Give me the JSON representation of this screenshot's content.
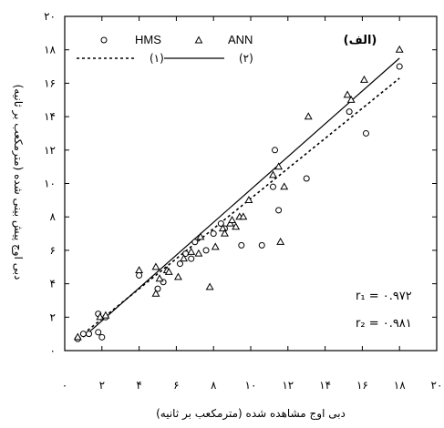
{
  "chart_data": {
    "type": "scatter",
    "panel_label": "(الف)",
    "xlabel": "دبی اوج مشاهده شده (مترمکعب بر ثانیه)",
    "ylabel": "دبی اوج پیش بینی شده (مترمکعب بر ثانیه)",
    "xlim": [
      0,
      20
    ],
    "ylim": [
      0,
      20
    ],
    "x_ticks": [
      0,
      2,
      4,
      6,
      8,
      10,
      12,
      14,
      16,
      18,
      20
    ],
    "x_tick_labels": [
      "۰",
      "۲",
      "۴",
      "۶",
      "۸",
      "۱۰",
      "۱۲",
      "۱۴",
      "۱۶",
      "۱۸",
      "۲۰"
    ],
    "y_ticks": [
      0,
      2,
      4,
      6,
      8,
      10,
      12,
      14,
      16,
      18,
      20
    ],
    "y_tick_labels": [
      "۰",
      "۲",
      "۴",
      "۶",
      "۸",
      "۱۰",
      "۱۲",
      "۱۴",
      "۱۶",
      "۱۸",
      "۲۰"
    ],
    "grid": false,
    "legend_position": "top-left",
    "series": [
      {
        "name": "HMS",
        "marker": "circle",
        "points": [
          [
            0.7,
            0.7
          ],
          [
            1.0,
            1.0
          ],
          [
            1.3,
            1.0
          ],
          [
            1.8,
            1.1
          ],
          [
            2.0,
            0.8
          ],
          [
            1.8,
            2.2
          ],
          [
            2.2,
            2.0
          ],
          [
            4.0,
            4.5
          ],
          [
            5.0,
            3.7
          ],
          [
            5.3,
            4.1
          ],
          [
            6.2,
            5.2
          ],
          [
            6.5,
            5.8
          ],
          [
            6.8,
            5.5
          ],
          [
            7.0,
            6.5
          ],
          [
            7.6,
            6.0
          ],
          [
            8.0,
            7.0
          ],
          [
            8.4,
            7.6
          ],
          [
            8.6,
            7.3
          ],
          [
            9.5,
            6.3
          ],
          [
            10.6,
            6.3
          ],
          [
            11.3,
            12.0
          ],
          [
            11.5,
            8.4
          ],
          [
            11.2,
            9.8
          ],
          [
            13.0,
            10.3
          ],
          [
            15.3,
            14.3
          ],
          [
            16.2,
            13.0
          ],
          [
            18.0,
            17.0
          ]
        ]
      },
      {
        "name": "ANN",
        "marker": "triangle",
        "points": [
          [
            0.7,
            0.8
          ],
          [
            1.9,
            2.0
          ],
          [
            2.2,
            2.1
          ],
          [
            4.0,
            4.8
          ],
          [
            4.9,
            3.4
          ],
          [
            4.9,
            5.0
          ],
          [
            5.1,
            4.3
          ],
          [
            5.5,
            4.8
          ],
          [
            5.6,
            4.7
          ],
          [
            6.1,
            4.4
          ],
          [
            6.4,
            5.5
          ],
          [
            6.8,
            5.9
          ],
          [
            7.2,
            5.8
          ],
          [
            7.3,
            6.8
          ],
          [
            7.8,
            3.8
          ],
          [
            8.1,
            6.2
          ],
          [
            8.5,
            7.3
          ],
          [
            8.6,
            7.0
          ],
          [
            8.9,
            7.6
          ],
          [
            9.0,
            7.8
          ],
          [
            9.2,
            7.4
          ],
          [
            9.4,
            8.0
          ],
          [
            9.6,
            8.0
          ],
          [
            9.9,
            9.0
          ],
          [
            11.2,
            10.5
          ],
          [
            11.5,
            11.0
          ],
          [
            11.6,
            6.5
          ],
          [
            11.8,
            9.8
          ],
          [
            13.1,
            14.0
          ],
          [
            15.2,
            15.3
          ],
          [
            15.4,
            15.0
          ],
          [
            16.1,
            16.2
          ],
          [
            18.0,
            18.0
          ]
        ]
      }
    ],
    "fit_lines": [
      {
        "name": "(۱)",
        "style": "dotted",
        "from": [
          1.0,
          1.0
        ],
        "to": [
          18.0,
          16.3
        ]
      },
      {
        "name": "(۲)",
        "style": "solid",
        "from": [
          1.0,
          0.8
        ],
        "to": [
          18.0,
          17.5
        ]
      }
    ],
    "annotations": {
      "r1_label": "r₁ = ۰.۹۷۲",
      "r2_label": "r₂ = ۰.۹۸۱"
    }
  }
}
